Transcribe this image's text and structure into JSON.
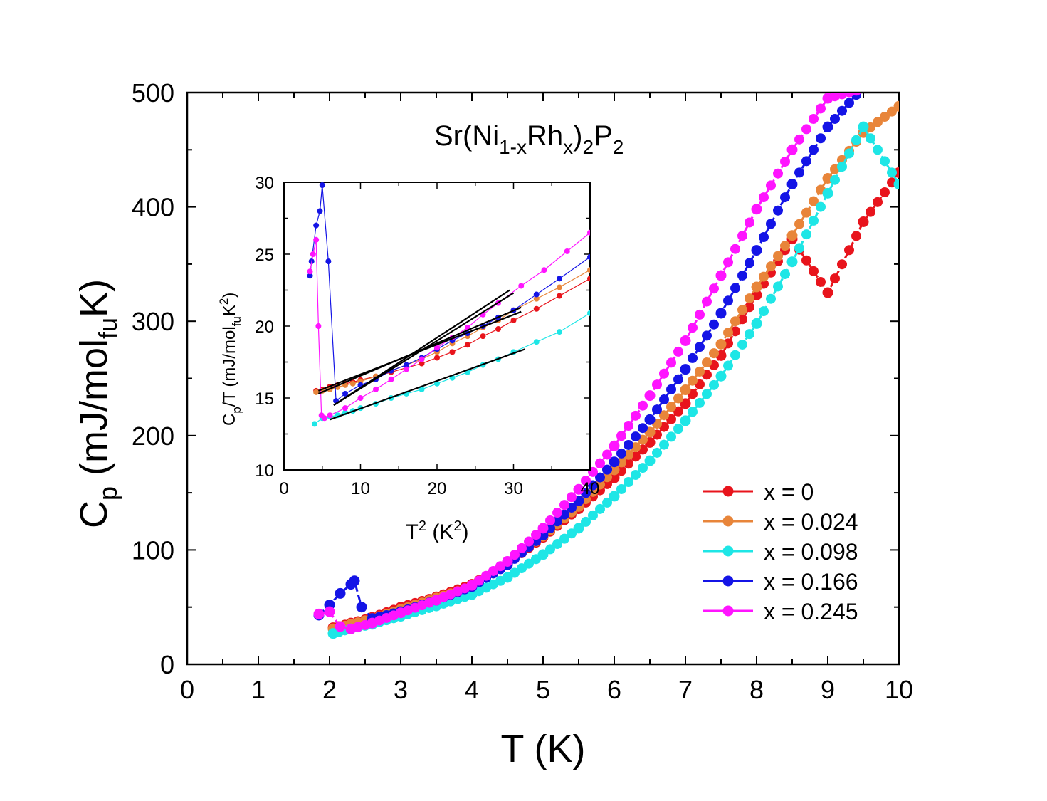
{
  "chart_data": [
    {
      "type": "scatter",
      "role": "main",
      "title": "Sr(Ni1-xRhx)2P2",
      "title_parts": {
        "a": "Sr(Ni",
        "b": "1-x",
        "c": "Rh",
        "d": "x",
        "e": ")",
        "f": "2",
        "g": "P",
        "h": "2"
      },
      "xlabel": "T (K)",
      "ylabel_parts": {
        "a": "C",
        "b": "p",
        "c": " (mJ/mol",
        "d": "fu",
        "e": "K)"
      },
      "xlim": [
        0,
        10
      ],
      "ylim": [
        0,
        500
      ],
      "xticks": [
        "0",
        "1",
        "2",
        "3",
        "4",
        "5",
        "6",
        "7",
        "8",
        "9",
        "10"
      ],
      "yticks": [
        "0",
        "100",
        "200",
        "300",
        "400",
        "500"
      ],
      "legend_position": "bottom-right",
      "series": [
        {
          "name": "x = 0",
          "color": "#e8141c",
          "x": [
            2.05,
            2.3,
            2.6,
            3.0,
            3.5,
            4.0,
            4.5,
            5.0,
            5.5,
            6.0,
            6.5,
            7.0,
            7.5,
            8.0,
            8.5,
            9.0,
            9.5,
            10.0
          ],
          "y": [
            32,
            36,
            41,
            50,
            59,
            70,
            88,
            111,
            136,
            163,
            194,
            228,
            270,
            323,
            372,
            325,
            387,
            430
          ]
        },
        {
          "name": "x = 0.024",
          "color": "#e8853a",
          "x": [
            2.05,
            2.3,
            2.6,
            3.0,
            3.5,
            4.0,
            4.5,
            5.0,
            5.5,
            6.0,
            6.5,
            7.0,
            7.5,
            8.0,
            8.5,
            9.0,
            9.5,
            10.0
          ],
          "y": [
            31,
            35,
            40,
            48,
            58,
            68,
            89,
            112,
            138,
            170,
            203,
            240,
            280,
            330,
            375,
            425,
            465,
            488
          ]
        },
        {
          "name": "x = 0.098",
          "color": "#1ee6e6",
          "x": [
            2.05,
            2.3,
            2.6,
            3.0,
            3.5,
            4.0,
            4.5,
            5.0,
            5.5,
            6.0,
            6.5,
            7.0,
            7.5,
            8.0,
            8.5,
            9.0,
            9.5,
            10.0
          ],
          "y": [
            27,
            31,
            35,
            42,
            51,
            61,
            76,
            96,
            119,
            147,
            178,
            213,
            252,
            298,
            352,
            412,
            470,
            420
          ]
        },
        {
          "name": "x = 0.166",
          "color": "#1414e6",
          "x": [
            1.85,
            2.0,
            2.15,
            2.3,
            2.35,
            2.45,
            2.6,
            3.0,
            3.5,
            4.0,
            4.5,
            5.0,
            5.5,
            6.0,
            6.5,
            7.0,
            7.5,
            8.0,
            8.5,
            9.0,
            9.5,
            9.8
          ],
          "y": [
            43,
            52,
            62,
            70,
            73,
            50,
            40,
            46,
            56,
            68,
            87,
            113,
            143,
            177,
            214,
            258,
            307,
            362,
            420,
            470,
            505,
            510
          ]
        },
        {
          "name": "x = 0.245",
          "color": "#ff14ff",
          "x": [
            1.85,
            2.0,
            2.15,
            2.3,
            2.6,
            3.0,
            3.5,
            4.0,
            4.5,
            5.0,
            5.5,
            6.0,
            6.5,
            7.0,
            7.5,
            8.0,
            8.5,
            9.0,
            9.4
          ],
          "y": [
            44,
            46,
            33,
            31,
            36,
            45,
            56,
            69,
            90,
            119,
            153,
            191,
            235,
            283,
            340,
            398,
            450,
            495,
            502
          ]
        }
      ]
    },
    {
      "type": "scatter",
      "role": "inset",
      "xlabel_parts": {
        "a": "T",
        "b": "2",
        "c": " (K",
        "d": "2",
        "e": ")"
      },
      "ylabel_parts": {
        "a": "C",
        "b": "p",
        "c": "/T (mJ/mol",
        "d": "fu",
        "e": "K",
        "f": "2",
        "g": ")"
      },
      "xlim": [
        0,
        40
      ],
      "ylim": [
        10,
        30
      ],
      "xticks": [
        "0",
        "10",
        "20",
        "30",
        "40"
      ],
      "yticks": [
        "10",
        "15",
        "20",
        "25",
        "30"
      ],
      "series": [
        {
          "name": "x = 0",
          "color": "#e8141c",
          "x": [
            4.2,
            5,
            6,
            7,
            8,
            9,
            10,
            12,
            14,
            16,
            18,
            20,
            22,
            24,
            26,
            28,
            30,
            33,
            36,
            40
          ],
          "y": [
            15.5,
            15.6,
            15.8,
            15.9,
            16.0,
            16.1,
            16.25,
            16.5,
            16.8,
            17.1,
            17.4,
            17.8,
            18.2,
            18.7,
            19.3,
            19.8,
            20.4,
            21.2,
            22.1,
            23.3
          ]
        },
        {
          "name": "x = 0.024",
          "color": "#e8853a",
          "x": [
            4.2,
            5,
            6,
            7,
            8,
            9,
            10,
            12,
            14,
            16,
            18,
            20,
            22,
            24,
            26,
            28,
            30,
            33,
            36,
            40
          ],
          "y": [
            15.4,
            15.5,
            15.6,
            15.75,
            15.9,
            16.0,
            16.15,
            16.5,
            16.9,
            17.3,
            17.7,
            18.2,
            18.8,
            19.3,
            19.9,
            20.4,
            21.1,
            21.9,
            22.7,
            23.9
          ]
        },
        {
          "name": "x = 0.098",
          "color": "#1ee6e6",
          "x": [
            4,
            5,
            6,
            7,
            8,
            9,
            10,
            12,
            14,
            16,
            18,
            20,
            22,
            24,
            26,
            28,
            30,
            33,
            36,
            40
          ],
          "y": [
            13.2,
            13.6,
            13.7,
            13.8,
            14.0,
            14.1,
            14.3,
            14.6,
            15.0,
            15.3,
            15.6,
            16.0,
            16.4,
            16.8,
            17.3,
            17.7,
            18.2,
            18.9,
            19.6,
            20.9
          ]
        },
        {
          "name": "x = 0.166",
          "color": "#1414e6",
          "x": [
            3.4,
            3.6,
            4.2,
            4.7,
            5.0,
            5.8,
            6.8,
            8,
            10,
            12,
            14,
            16,
            18,
            20,
            22,
            24,
            26,
            28,
            30,
            33,
            36,
            40
          ],
          "y": [
            23.5,
            24.5,
            27.0,
            28.0,
            29.8,
            24.5,
            14.8,
            15.3,
            15.9,
            16.3,
            16.9,
            17.3,
            17.8,
            18.4,
            19.0,
            19.5,
            20.0,
            20.6,
            21.1,
            22.2,
            23.3,
            24.8
          ]
        },
        {
          "name": "x = 0.245",
          "color": "#ff14ff",
          "x": [
            3.4,
            3.8,
            4.2,
            4.5,
            4.9,
            5.3,
            6,
            8,
            10,
            12,
            14,
            16,
            18,
            20,
            22,
            24,
            26,
            28,
            31,
            34,
            37,
            40
          ],
          "y": [
            23.8,
            25.0,
            26.0,
            20.0,
            13.8,
            13.6,
            13.8,
            14.3,
            15.0,
            15.6,
            16.3,
            17.0,
            17.7,
            18.5,
            19.2,
            19.9,
            20.8,
            21.6,
            22.8,
            23.9,
            25.2,
            26.5
          ]
        }
      ],
      "fits": [
        {
          "name": "fit-x0",
          "x": [
            4.5,
            31
          ],
          "y": [
            15.5,
            21.0
          ]
        },
        {
          "name": "fit-x0.024",
          "x": [
            4.5,
            31
          ],
          "y": [
            15.3,
            21.3
          ]
        },
        {
          "name": "fit-x0.098",
          "x": [
            6,
            31.5
          ],
          "y": [
            13.5,
            18.4
          ]
        },
        {
          "name": "fit-x0.166",
          "x": [
            6.5,
            30
          ],
          "y": [
            14.5,
            22.3
          ]
        },
        {
          "name": "fit-x0.245",
          "x": [
            6.5,
            29.5
          ],
          "y": [
            14.5,
            22.5
          ]
        }
      ]
    }
  ]
}
